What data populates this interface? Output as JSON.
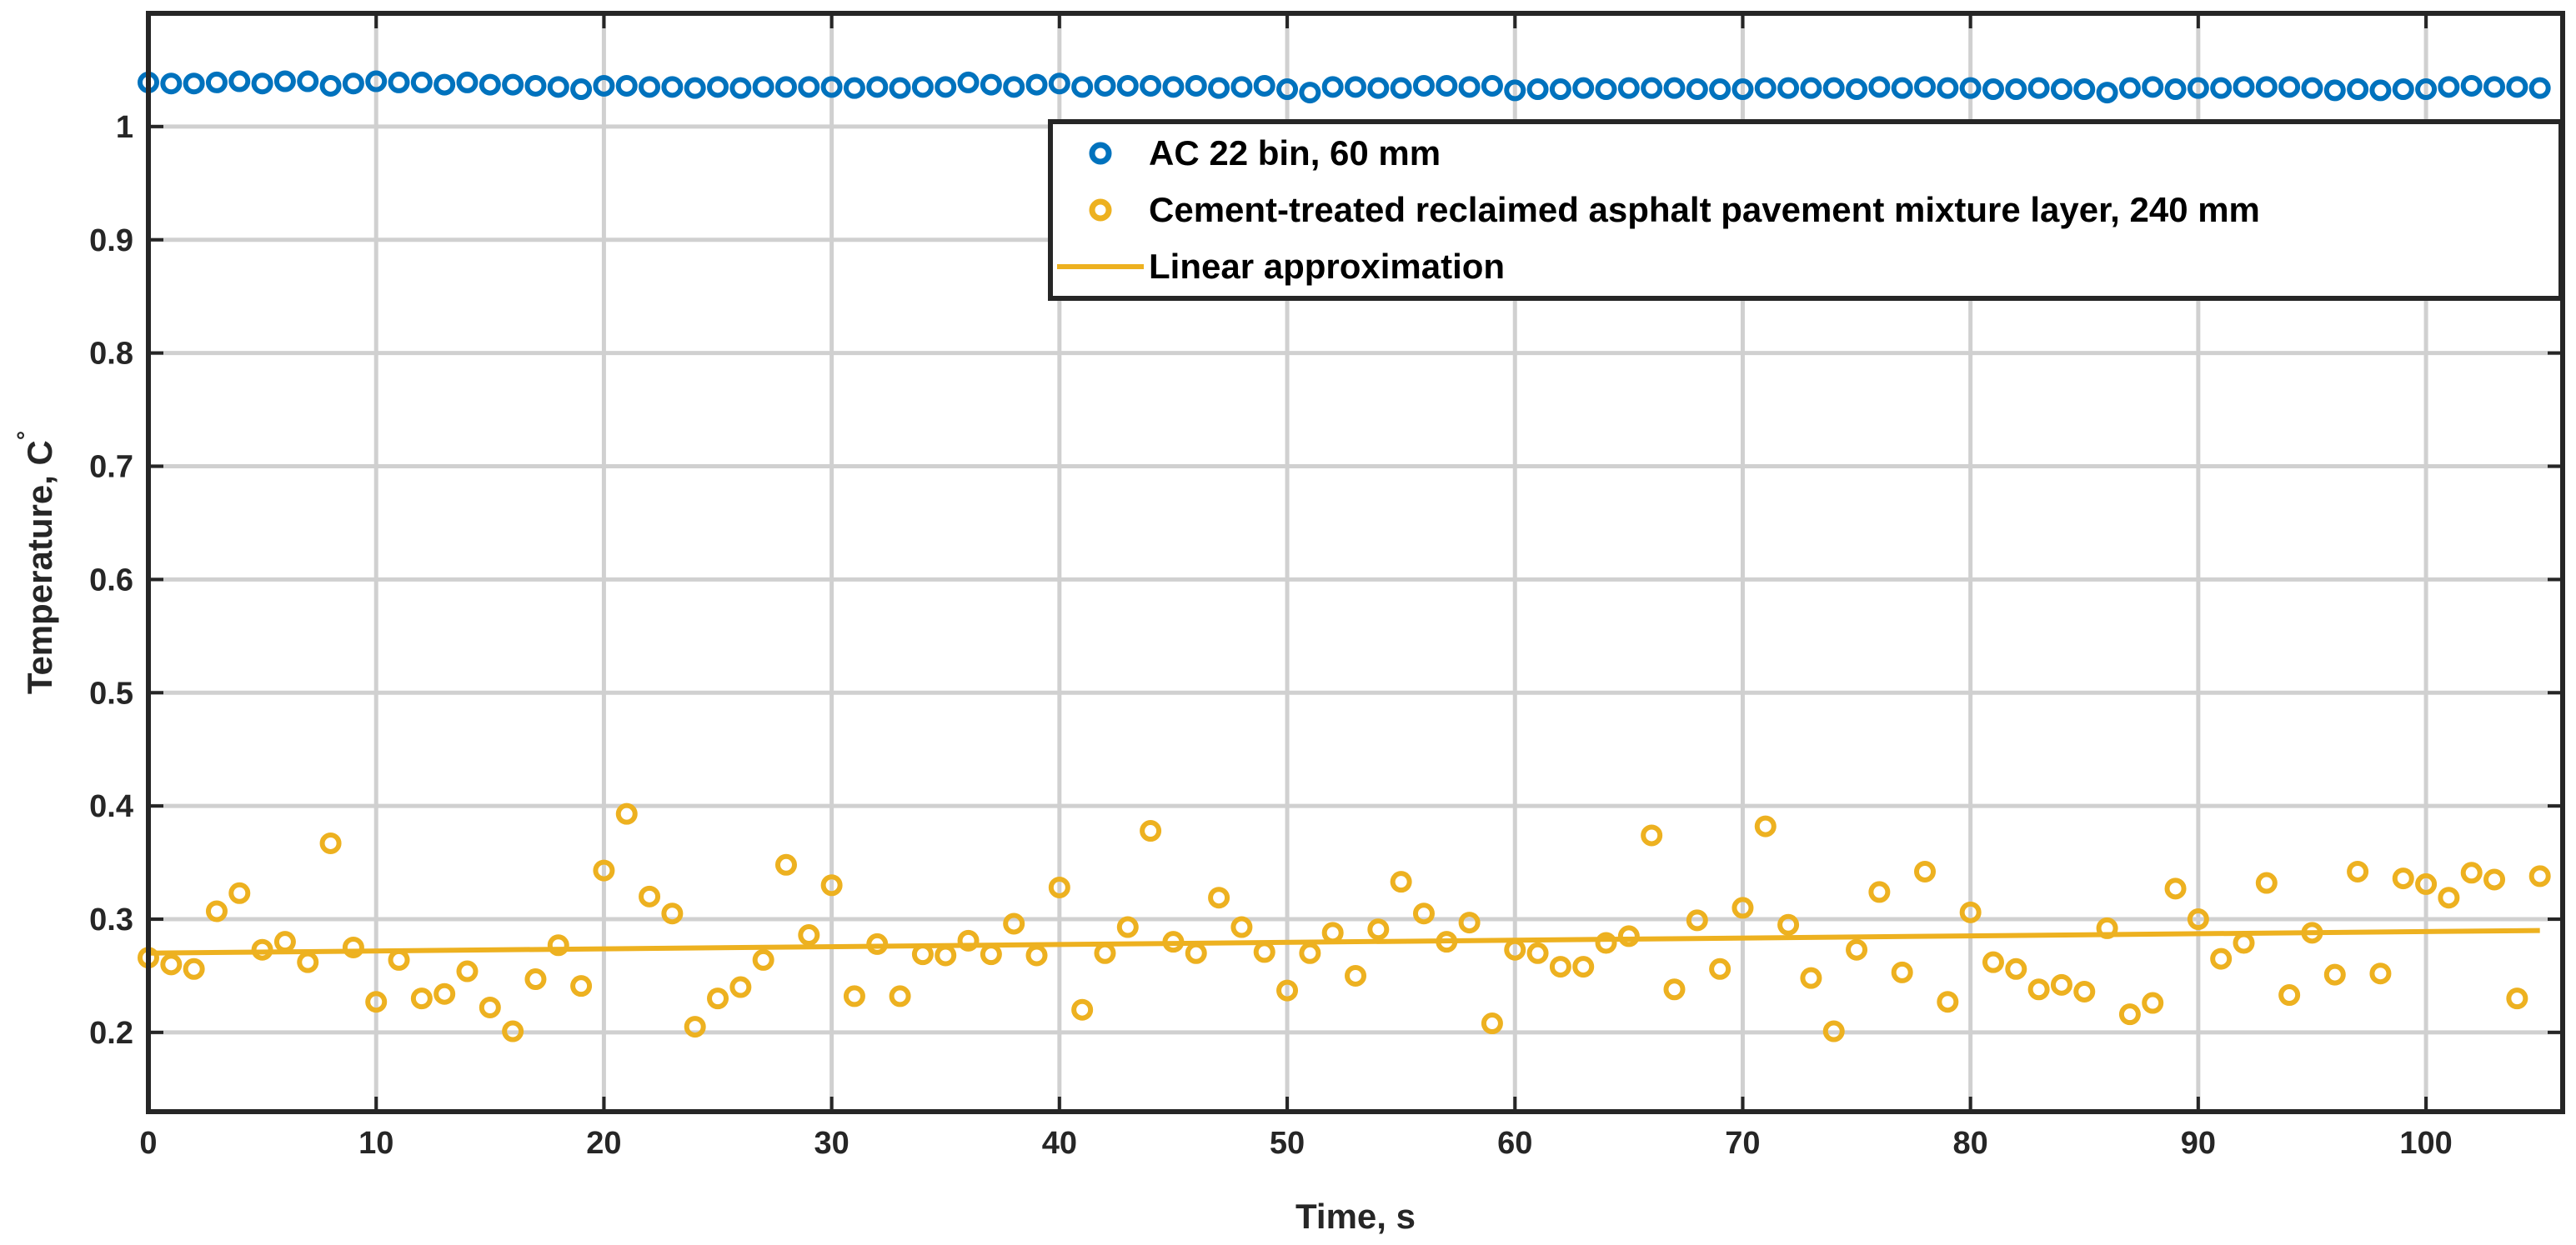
{
  "chart_data": {
    "type": "scatter",
    "title": "",
    "xlabel": "Time, s",
    "ylabel": "Temperature, C",
    "ylabel_superscript": "°",
    "xlim": [
      0,
      106
    ],
    "ylim": [
      0.13,
      1.1
    ],
    "xticks": [
      0,
      10,
      20,
      30,
      40,
      50,
      60,
      70,
      80,
      90,
      100
    ],
    "yticks": [
      0.2,
      0.3,
      0.4,
      0.5,
      0.6,
      0.7,
      0.8,
      0.9,
      1
    ],
    "grid": true,
    "legend_location": "top-right",
    "colors": {
      "blue": "#0072BD",
      "orange": "#EDB120",
      "text": "#262626"
    },
    "series": [
      {
        "name": "AC 22 bin, 60 mm",
        "kind": "markers",
        "color": "#0072BD",
        "x": [
          0,
          1,
          2,
          3,
          4,
          5,
          6,
          7,
          8,
          9,
          10,
          11,
          12,
          13,
          14,
          15,
          16,
          17,
          18,
          19,
          20,
          21,
          22,
          23,
          24,
          25,
          26,
          27,
          28,
          29,
          30,
          31,
          32,
          33,
          34,
          35,
          36,
          37,
          38,
          39,
          40,
          41,
          42,
          43,
          44,
          45,
          46,
          47,
          48,
          49,
          50,
          51,
          52,
          53,
          54,
          55,
          56,
          57,
          58,
          59,
          60,
          61,
          62,
          63,
          64,
          65,
          66,
          67,
          68,
          69,
          70,
          71,
          72,
          73,
          74,
          75,
          76,
          77,
          78,
          79,
          80,
          81,
          82,
          83,
          84,
          85,
          86,
          87,
          88,
          89,
          90,
          91,
          92,
          93,
          94,
          95,
          96,
          97,
          98,
          99,
          100,
          101,
          102,
          103,
          104,
          105
        ],
        "y": [
          1.039,
          1.038,
          1.038,
          1.039,
          1.04,
          1.038,
          1.04,
          1.04,
          1.036,
          1.038,
          1.04,
          1.039,
          1.039,
          1.037,
          1.039,
          1.037,
          1.037,
          1.036,
          1.035,
          1.033,
          1.036,
          1.036,
          1.035,
          1.035,
          1.034,
          1.035,
          1.034,
          1.035,
          1.035,
          1.035,
          1.035,
          1.034,
          1.035,
          1.034,
          1.035,
          1.035,
          1.039,
          1.037,
          1.035,
          1.037,
          1.038,
          1.035,
          1.036,
          1.036,
          1.036,
          1.035,
          1.036,
          1.034,
          1.035,
          1.036,
          1.033,
          1.03,
          1.035,
          1.035,
          1.034,
          1.034,
          1.036,
          1.036,
          1.035,
          1.036,
          1.032,
          1.033,
          1.033,
          1.034,
          1.033,
          1.034,
          1.034,
          1.034,
          1.033,
          1.033,
          1.033,
          1.034,
          1.034,
          1.034,
          1.034,
          1.033,
          1.035,
          1.034,
          1.035,
          1.034,
          1.034,
          1.033,
          1.033,
          1.034,
          1.033,
          1.033,
          1.03,
          1.034,
          1.035,
          1.033,
          1.034,
          1.034,
          1.035,
          1.035,
          1.035,
          1.034,
          1.032,
          1.033,
          1.032,
          1.033,
          1.033,
          1.035,
          1.036,
          1.035,
          1.035,
          1.034
        ]
      },
      {
        "name": "Cement-treated reclaimed asphalt pavement mixture layer, 240 mm",
        "kind": "markers",
        "color": "#EDB120",
        "x": [
          0,
          1,
          2,
          3,
          4,
          5,
          6,
          7,
          8,
          9,
          10,
          11,
          12,
          13,
          14,
          15,
          16,
          17,
          18,
          19,
          20,
          21,
          22,
          23,
          24,
          25,
          26,
          27,
          28,
          29,
          30,
          31,
          32,
          33,
          34,
          35,
          36,
          37,
          38,
          39,
          40,
          41,
          42,
          43,
          44,
          45,
          46,
          47,
          48,
          49,
          50,
          51,
          52,
          53,
          54,
          55,
          56,
          57,
          58,
          59,
          60,
          61,
          62,
          63,
          64,
          65,
          66,
          67,
          68,
          69,
          70,
          71,
          72,
          73,
          74,
          75,
          76,
          77,
          78,
          79,
          80,
          81,
          82,
          83,
          84,
          85,
          86,
          87,
          88,
          89,
          90,
          91,
          92,
          93,
          94,
          95,
          96,
          97,
          98,
          99,
          100,
          101,
          102,
          103,
          104,
          105
        ],
        "y": [
          0.266,
          0.26,
          0.256,
          0.307,
          0.323,
          0.273,
          0.28,
          0.262,
          0.367,
          0.275,
          0.227,
          0.264,
          0.23,
          0.234,
          0.254,
          0.222,
          0.201,
          0.247,
          0.277,
          0.241,
          0.343,
          0.393,
          0.32,
          0.305,
          0.205,
          0.23,
          0.24,
          0.264,
          0.348,
          0.286,
          0.33,
          0.232,
          0.278,
          0.232,
          0.269,
          0.268,
          0.281,
          0.269,
          0.296,
          0.268,
          0.328,
          0.22,
          0.27,
          0.293,
          0.378,
          0.28,
          0.27,
          0.319,
          0.293,
          0.271,
          0.237,
          0.27,
          0.288,
          0.25,
          0.291,
          0.333,
          0.305,
          0.28,
          0.297,
          0.208,
          0.273,
          0.27,
          0.258,
          0.258,
          0.279,
          0.285,
          0.374,
          0.238,
          0.299,
          0.256,
          0.31,
          0.382,
          0.295,
          0.248,
          0.201,
          0.273,
          0.324,
          0.253,
          0.342,
          0.227,
          0.306,
          0.262,
          0.256,
          0.238,
          0.242,
          0.236,
          0.292,
          0.216,
          0.226,
          0.327,
          0.3,
          0.265,
          0.279,
          0.332,
          0.233,
          0.288,
          0.251,
          0.342,
          0.252,
          0.336,
          0.331,
          0.319,
          0.341,
          0.335,
          0.23,
          0.338
        ]
      },
      {
        "name": "Linear approximation",
        "kind": "line",
        "color": "#EDB120",
        "x": [
          0,
          105
        ],
        "y": [
          0.27,
          0.29
        ]
      }
    ]
  }
}
